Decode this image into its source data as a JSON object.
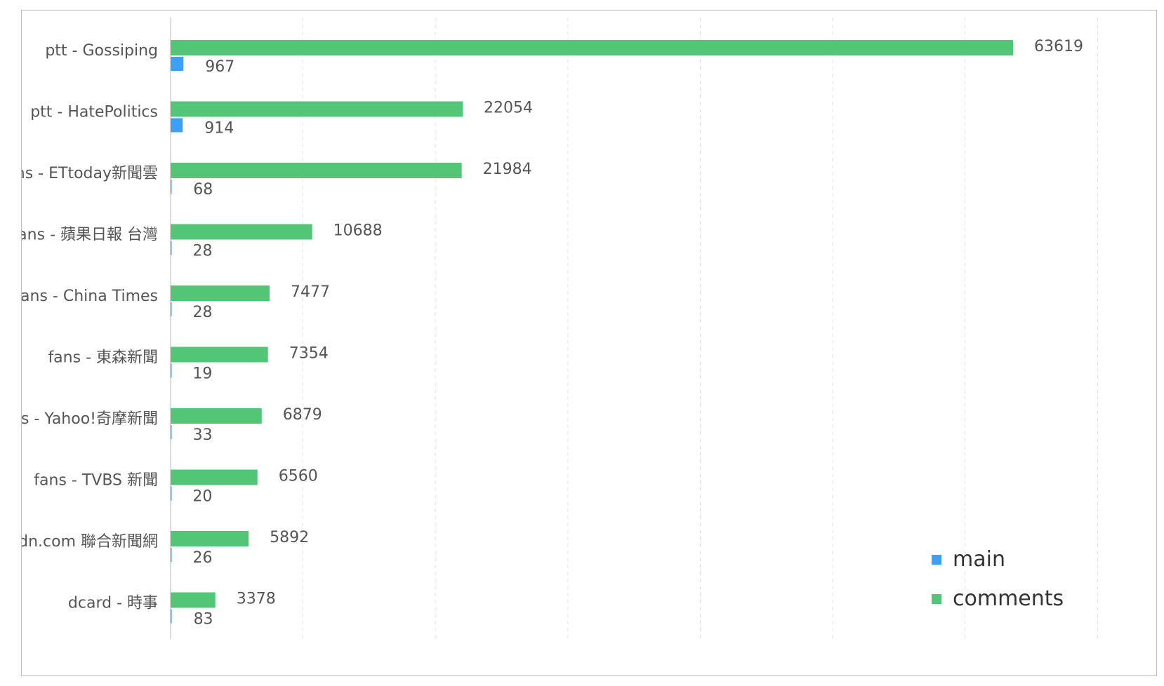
{
  "chart_data": {
    "type": "bar",
    "orientation": "horizontal",
    "categories": [
      "ptt - Gossiping",
      "ptt - HatePolitics",
      "fans - ETtoday新聞雲",
      "fans - 蘋果日報 台灣",
      "fans - China Times",
      "fans - 東森新聞",
      "fans - Yahoo!奇摩新聞",
      "fans - TVBS 新聞",
      "fans - udn.com 聯合新聞網",
      "dcard - 時事"
    ],
    "series": [
      {
        "name": "comments",
        "color": "#52c576",
        "values": [
          63619,
          22054,
          21984,
          10688,
          7477,
          7354,
          6879,
          6560,
          5892,
          3378
        ]
      },
      {
        "name": "main",
        "color": "#3f9ff5",
        "values": [
          967,
          914,
          68,
          28,
          28,
          19,
          33,
          20,
          26,
          83
        ]
      }
    ],
    "xlim": [
      0,
      70000
    ],
    "grid": true,
    "grid_style": "dashed-vertical",
    "legend_position": "bottom-right",
    "legend_order": [
      "main",
      "comments"
    ],
    "value_labels": true
  }
}
